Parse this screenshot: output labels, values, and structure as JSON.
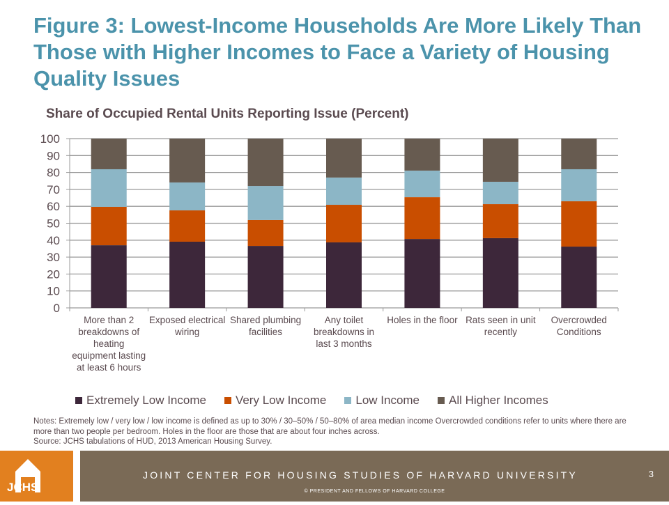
{
  "title": "Figure 3: Lowest-Income Households Are More Likely Than Those with Higher Incomes to Face a Variety of Housing Quality Issues",
  "chart_data": {
    "type": "bar",
    "stacked": true,
    "title": "Share of Occupied Rental Units Reporting Issue (Percent)",
    "ylim": [
      0,
      100
    ],
    "yticks": [
      "0",
      "10",
      "20",
      "30",
      "40",
      "50",
      "60",
      "70",
      "80",
      "90",
      "100"
    ],
    "grid": true,
    "legend_position": "bottom",
    "categories": [
      "More than 2 breakdowns of heating equipment lasting at least 6 hours",
      "Exposed electrical wiring",
      "Shared plumbing facilities",
      "Any toilet breakdowns in last 3 months",
      "Holes in the floor",
      "Rats seen in unit recently",
      "Overcrowded Conditions"
    ],
    "series": [
      {
        "name": "Extremely Low Income",
        "color": "#3D273A",
        "values": [
          37.0,
          39.1,
          36.6,
          38.7,
          40.7,
          41.2,
          36.2
        ]
      },
      {
        "name": "Very Low Income",
        "color": "#C94E00",
        "values": [
          22.7,
          18.5,
          15.3,
          22.2,
          24.7,
          20.1,
          26.8
        ]
      },
      {
        "name": "Low Income",
        "color": "#8CB6C6",
        "values": [
          22.2,
          16.5,
          20.1,
          16.1,
          15.7,
          13.2,
          18.9
        ]
      },
      {
        "name": "All Higher Incomes",
        "color": "#675B50",
        "values": [
          18.1,
          25.9,
          28.0,
          23.0,
          18.9,
          25.5,
          18.1
        ]
      }
    ]
  },
  "notes": [
    "Notes: Extremely low / very low / low income is defined as up to 30% / 30–50% / 50–80% of area median income Overcrowded conditions refer to units where there are more than two people per bedroom. Holes in the floor are those that are about four inches across.",
    "Source: JCHS tabulations of HUD, 2013 American Housing Survey."
  ],
  "footer": {
    "logo": "JCHS",
    "org": "JOINT CENTER FOR HOUSING STUDIES OF HARVARD UNIVERSITY",
    "copyright": "© PRESIDENT AND FELLOWS OF HARVARD COLLEGE",
    "page": "3"
  }
}
